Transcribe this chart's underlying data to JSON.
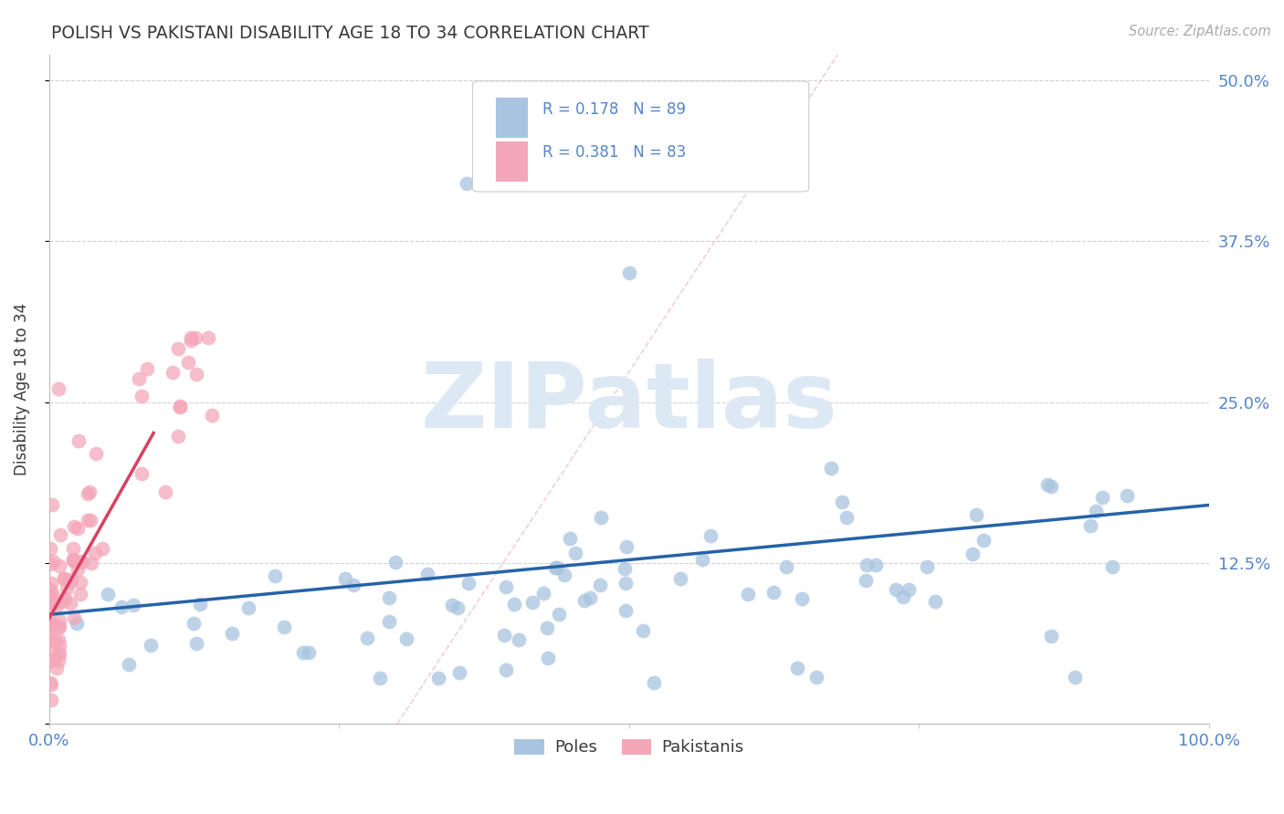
{
  "title": "POLISH VS PAKISTANI DISABILITY AGE 18 TO 34 CORRELATION CHART",
  "source": "Source: ZipAtlas.com",
  "ylabel": "Disability Age 18 to 34",
  "xlim": [
    0.0,
    1.0
  ],
  "ylim": [
    0.0,
    0.52
  ],
  "xtick_positions": [
    0.0,
    0.25,
    0.5,
    0.75,
    1.0
  ],
  "xticklabels": [
    "0.0%",
    "",
    "",
    "",
    "100.0%"
  ],
  "ytick_positions": [
    0.0,
    0.125,
    0.25,
    0.375,
    0.5
  ],
  "yticklabels_right": [
    "",
    "12.5%",
    "25.0%",
    "37.5%",
    "50.0%"
  ],
  "r_poles": 0.178,
  "n_poles": 89,
  "r_pakistanis": 0.381,
  "n_pakistanis": 83,
  "legend_labels": [
    "Poles",
    "Pakistanis"
  ],
  "color_poles": "#a8c4e0",
  "color_pakistanis": "#f4a7b9",
  "line_color_poles": "#2563a8",
  "line_color_pakistanis": "#d94060",
  "tick_color": "#5585c8",
  "watermark_text": "ZIPatlas",
  "background_color": "#ffffff",
  "grid_color": "#cccccc",
  "title_color": "#3a3a3a"
}
